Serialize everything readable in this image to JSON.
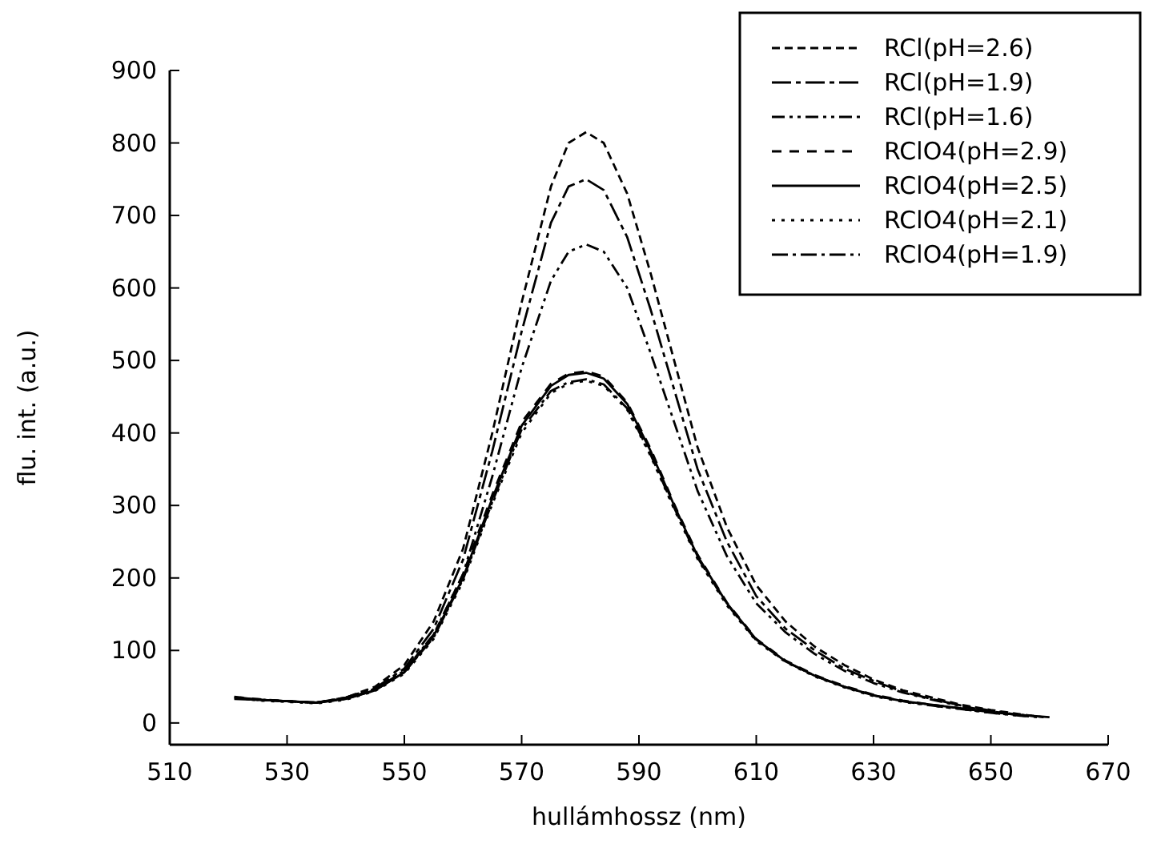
{
  "chart_data": {
    "type": "line",
    "xlabel": "hullámhossz (nm)",
    "ylabel": "flu. int. (a.u.)",
    "xlim": [
      510,
      670
    ],
    "xticks": [
      510,
      530,
      550,
      570,
      590,
      610,
      630,
      650,
      670
    ],
    "ylim": [
      -30,
      900
    ],
    "yticks": [
      0,
      100,
      200,
      300,
      400,
      500,
      600,
      700,
      800,
      900
    ],
    "grid": false,
    "legend": "top right",
    "series": [
      {
        "name": "RCl(pH=2.6)",
        "color": "#000000",
        "line_style": "dashed",
        "x": [
          521,
          525,
          530,
          535,
          540,
          545,
          550,
          555,
          560,
          565,
          570,
          575,
          578,
          581,
          584,
          588,
          592,
          596,
          600,
          605,
          610,
          615,
          620,
          625,
          630,
          635,
          640,
          645,
          650,
          655,
          659
        ],
        "values": [
          35,
          32,
          30,
          28,
          35,
          50,
          80,
          140,
          240,
          400,
          580,
          740,
          800,
          815,
          800,
          730,
          620,
          500,
          380,
          270,
          190,
          140,
          105,
          80,
          60,
          45,
          35,
          25,
          18,
          12,
          8
        ]
      },
      {
        "name": "RCl(pH=1.9)",
        "color": "#000000",
        "line_style": "dashed",
        "x": [
          522,
          525,
          530,
          535,
          540,
          545,
          550,
          555,
          560,
          565,
          570,
          575,
          578,
          581,
          584,
          588,
          592,
          596,
          600,
          605,
          610,
          615,
          620,
          625,
          630,
          635,
          640,
          645,
          650,
          655,
          658
        ],
        "values": [
          34,
          32,
          30,
          28,
          35,
          48,
          75,
          130,
          225,
          375,
          540,
          690,
          740,
          750,
          735,
          670,
          570,
          460,
          350,
          250,
          175,
          130,
          100,
          75,
          58,
          43,
          33,
          24,
          17,
          11,
          9
        ]
      },
      {
        "name": "RCl(pH=1.6)",
        "color": "#000000",
        "line_style": "dotted",
        "x": [
          523,
          525,
          530,
          535,
          540,
          545,
          550,
          555,
          560,
          565,
          570,
          575,
          578,
          581,
          584,
          588,
          592,
          596,
          600,
          605,
          610,
          615,
          620,
          625,
          630,
          635,
          640,
          645,
          650,
          655,
          657
        ],
        "values": [
          33,
          32,
          30,
          28,
          35,
          47,
          72,
          122,
          205,
          340,
          490,
          610,
          650,
          660,
          650,
          600,
          510,
          415,
          320,
          230,
          165,
          125,
          95,
          72,
          55,
          42,
          32,
          23,
          16,
          11,
          10
        ]
      },
      {
        "name": "RClO4(pH=2.9)",
        "color": "#000000",
        "line_style": "dashed",
        "x": [
          521,
          525,
          530,
          535,
          540,
          545,
          550,
          555,
          560,
          565,
          570,
          575,
          578,
          581,
          584,
          588,
          592,
          596,
          600,
          605,
          610,
          615,
          620,
          625,
          630,
          635,
          640,
          645,
          650,
          655,
          656
        ],
        "values": [
          36,
          33,
          30,
          28,
          34,
          46,
          72,
          122,
          205,
          315,
          415,
          468,
          482,
          485,
          478,
          442,
          378,
          302,
          232,
          166,
          116,
          86,
          66,
          51,
          39,
          31,
          25,
          20,
          15,
          11,
          10
        ]
      },
      {
        "name": "RClO4(pH=2.5)",
        "color": "#000000",
        "line_style": "solid",
        "x": [
          522,
          525,
          530,
          535,
          540,
          545,
          550,
          555,
          560,
          565,
          570,
          575,
          578,
          581,
          584,
          588,
          592,
          596,
          600,
          605,
          610,
          615,
          620,
          625,
          630,
          635,
          640,
          645,
          650,
          655,
          660
        ],
        "values": [
          35,
          32,
          30,
          28,
          33,
          45,
          70,
          120,
          200,
          310,
          410,
          465,
          480,
          483,
          475,
          440,
          375,
          300,
          230,
          165,
          115,
          85,
          65,
          50,
          38,
          30,
          25,
          20,
          15,
          11,
          8
        ]
      },
      {
        "name": "RClO4(pH=2.1)",
        "color": "#000000",
        "line_style": "dotted",
        "x": [
          524,
          525,
          530,
          535,
          540,
          545,
          550,
          555,
          560,
          565,
          570,
          575,
          578,
          581,
          584,
          588,
          592,
          596,
          600,
          605,
          610,
          615,
          620,
          625,
          630,
          635,
          640,
          645,
          650,
          655,
          657
        ],
        "values": [
          32,
          31,
          29,
          27,
          32,
          44,
          68,
          116,
          195,
          302,
          400,
          455,
          468,
          472,
          465,
          432,
          368,
          295,
          226,
          162,
          113,
          84,
          64,
          49,
          37,
          29,
          24,
          19,
          14,
          10,
          9
        ]
      },
      {
        "name": "RClO4(pH=1.9)",
        "color": "#000000",
        "line_style": "dashed",
        "x": [
          521,
          525,
          530,
          535,
          540,
          545,
          550,
          555,
          560,
          565,
          570,
          575,
          578,
          581,
          584,
          588,
          592,
          596,
          600,
          605,
          610,
          615,
          620,
          625,
          630,
          635,
          640,
          645,
          650,
          655,
          658
        ],
        "values": [
          33,
          32,
          30,
          28,
          33,
          45,
          70,
          118,
          198,
          305,
          405,
          458,
          470,
          474,
          467,
          434,
          370,
          297,
          228,
          164,
          114,
          85,
          65,
          50,
          38,
          30,
          24,
          19,
          14,
          10,
          8
        ]
      }
    ]
  }
}
